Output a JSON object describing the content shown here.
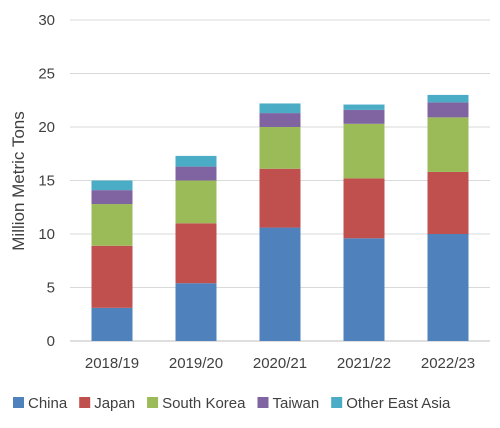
{
  "chart_data": {
    "type": "bar",
    "stacked": true,
    "ylabel": "Million Metric Tons",
    "xlabel": "",
    "ylim": [
      0,
      30
    ],
    "yticks": [
      0,
      5,
      10,
      15,
      20,
      25,
      30
    ],
    "grid": true,
    "legend_position": "bottom",
    "categories": [
      "2018/19",
      "2019/20",
      "2020/21",
      "2021/22",
      "2022/23"
    ],
    "series": [
      {
        "name": "China",
        "color": "#4f81bd",
        "values": [
          3.1,
          5.4,
          10.6,
          9.6,
          10.0
        ]
      },
      {
        "name": "Japan",
        "color": "#c0504d",
        "values": [
          5.8,
          5.6,
          5.5,
          5.6,
          5.8
        ]
      },
      {
        "name": "South Korea",
        "color": "#9bbb59",
        "values": [
          3.9,
          4.0,
          3.9,
          5.1,
          5.1
        ]
      },
      {
        "name": "Taiwan",
        "color": "#8064a2",
        "values": [
          1.3,
          1.3,
          1.3,
          1.3,
          1.4
        ]
      },
      {
        "name": "Other East Asia",
        "color": "#4bacc6",
        "values": [
          0.9,
          1.0,
          0.9,
          0.5,
          0.7
        ]
      }
    ]
  }
}
